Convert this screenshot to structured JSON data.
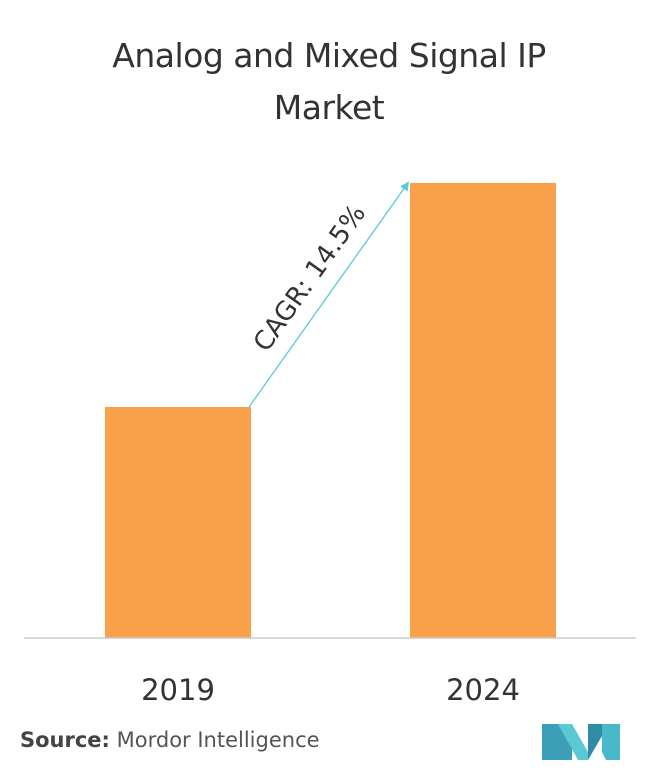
{
  "title_line1": "Analog and Mixed Signal IP",
  "title_line2": "Market",
  "source_label": "Source:",
  "source_text": "Mordor Intelligence",
  "colors": {
    "bar": "#F9A04A",
    "arrow": "#5BC8D6",
    "axis": "#CCCCCC",
    "logo": "#49B8C9"
  },
  "logo": "mordor-intelligence-logo",
  "chart_data": {
    "type": "bar",
    "categories": [
      "2019",
      "2024"
    ],
    "values": [
      1.0,
      1.97
    ],
    "ylim": [
      0,
      2.0
    ],
    "grid": false,
    "annotation": "CAGR: 14.5%"
  }
}
